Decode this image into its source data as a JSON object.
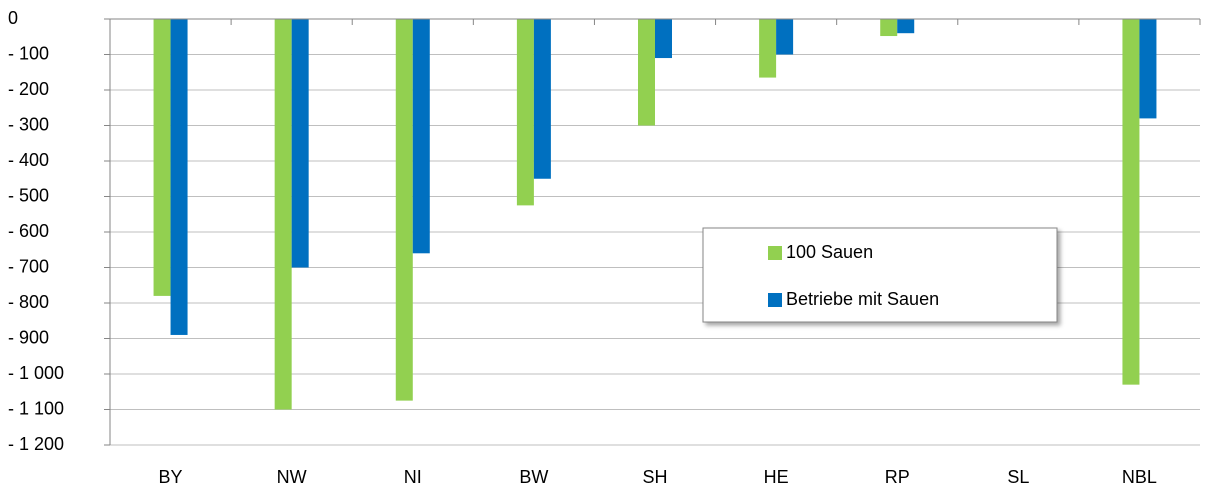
{
  "chart_data": {
    "type": "bar",
    "categories": [
      "BY",
      "NW",
      "NI",
      "BW",
      "SH",
      "HE",
      "RP",
      "SL",
      "NBL"
    ],
    "series": [
      {
        "name": "100 Sauen",
        "color": "#92d050",
        "values": [
          -780,
          -1100,
          -1075,
          -525,
          -300,
          -165,
          -48,
          0,
          -1030
        ]
      },
      {
        "name": "Betriebe mit Sauen",
        "color": "#0070c0",
        "values": [
          -890,
          -700,
          -660,
          -450,
          -110,
          -100,
          -40,
          0,
          -280
        ]
      }
    ],
    "ylim": [
      -1200,
      0
    ],
    "yticks": [
      0,
      {
        "value": -100,
        "label": "- 100"
      },
      {
        "value": -200,
        "label": "- 200"
      },
      {
        "value": -300,
        "label": "- 300"
      },
      {
        "value": -400,
        "label": "- 400"
      },
      {
        "value": -500,
        "label": "- 500"
      },
      {
        "value": -600,
        "label": "- 600"
      },
      {
        "value": -700,
        "label": "- 700"
      },
      {
        "value": -800,
        "label": "- 800"
      },
      {
        "value": -900,
        "label": "- 900"
      },
      {
        "value": -1000,
        "label": "- 1 000"
      },
      {
        "value": -1100,
        "label": "- 1 100"
      },
      {
        "value": -1200,
        "label": "- 1 200"
      }
    ],
    "grid": true
  }
}
